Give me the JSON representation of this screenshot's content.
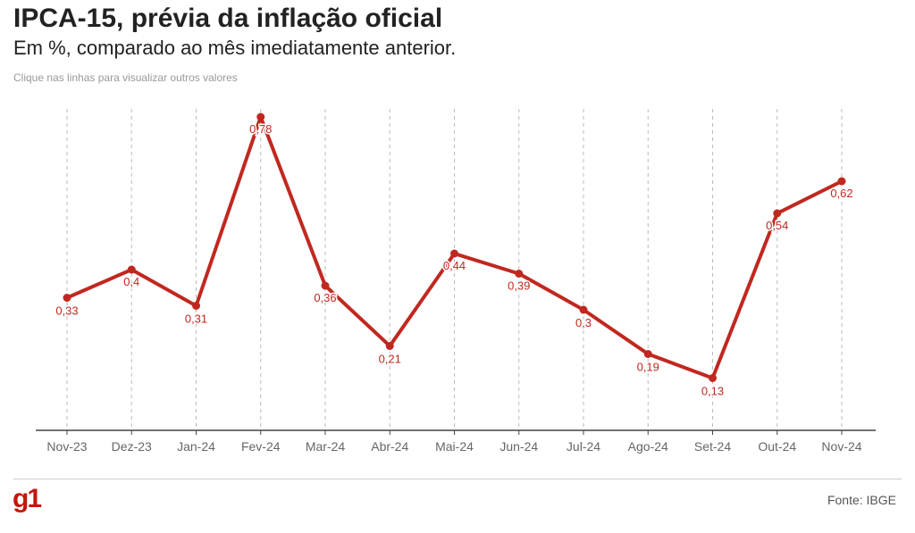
{
  "header": {
    "title": "IPCA-15, prévia da inflação oficial",
    "subtitle": "Em %, comparado ao mês imediatamente anterior.",
    "hint": "Clique nas linhas para visualizar outros valores"
  },
  "footer": {
    "logo": "g1",
    "source": "Fonte: IBGE"
  },
  "colors": {
    "series": "#c0281f",
    "axis": "#444444",
    "grid": "#bbbbbb",
    "tick_text": "#666666"
  },
  "chart_data": {
    "type": "line",
    "title": "IPCA-15, prévia da inflação oficial",
    "subtitle": "Em %, comparado ao mês imediatamente anterior.",
    "xlabel": "",
    "ylabel": "",
    "ylim": [
      0,
      0.8
    ],
    "grid": "vertical dashed",
    "categories": [
      "Nov-23",
      "Dez-23",
      "Jan-24",
      "Fev-24",
      "Mar-24",
      "Abr-24",
      "Mai-24",
      "Jun-24",
      "Jul-24",
      "Ago-24",
      "Set-24",
      "Out-24",
      "Nov-24"
    ],
    "series": [
      {
        "name": "IPCA-15",
        "values": [
          0.33,
          0.4,
          0.31,
          0.78,
          0.36,
          0.21,
          0.44,
          0.39,
          0.3,
          0.19,
          0.13,
          0.54,
          0.62
        ],
        "labels": [
          "0,33",
          "0,4",
          "0,31",
          "0,78",
          "0,36",
          "0,21",
          "0,44",
          "0,39",
          "0,3",
          "0,19",
          "0,13",
          "0,54",
          "0,62"
        ]
      }
    ]
  }
}
